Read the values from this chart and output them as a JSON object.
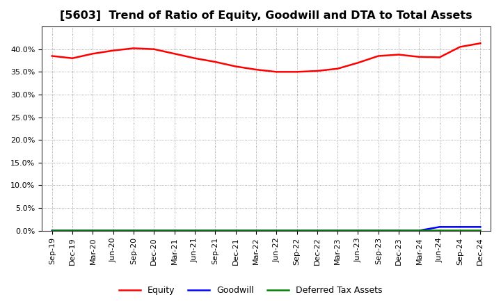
{
  "title": "[5603]  Trend of Ratio of Equity, Goodwill and DTA to Total Assets",
  "x_labels": [
    "Sep-19",
    "Dec-19",
    "Mar-20",
    "Jun-20",
    "Sep-20",
    "Dec-20",
    "Mar-21",
    "Jun-21",
    "Sep-21",
    "Dec-21",
    "Mar-22",
    "Jun-22",
    "Sep-22",
    "Dec-22",
    "Mar-23",
    "Jun-23",
    "Sep-23",
    "Dec-23",
    "Mar-24",
    "Jun-24",
    "Sep-24",
    "Dec-24"
  ],
  "equity": [
    0.385,
    0.38,
    0.39,
    0.397,
    0.402,
    0.4,
    0.39,
    0.38,
    0.372,
    0.362,
    0.355,
    0.35,
    0.35,
    0.352,
    0.357,
    0.37,
    0.385,
    0.388,
    0.383,
    0.382,
    0.405,
    0.413
  ],
  "goodwill": [
    0.0,
    0.0,
    0.0,
    0.0,
    0.0,
    0.0,
    0.0,
    0.0,
    0.0,
    0.0,
    0.0,
    0.0,
    0.0,
    0.0,
    0.0,
    0.0,
    0.0,
    0.0,
    0.0,
    0.008,
    0.008,
    0.008
  ],
  "dta": [
    0.001,
    0.001,
    0.001,
    0.001,
    0.001,
    0.001,
    0.001,
    0.001,
    0.001,
    0.001,
    0.001,
    0.001,
    0.001,
    0.001,
    0.001,
    0.001,
    0.001,
    0.001,
    0.001,
    0.001,
    0.001,
    0.001
  ],
  "equity_color": "#ff0000",
  "goodwill_color": "#0000ff",
  "dta_color": "#008000",
  "ylim": [
    0.0,
    0.45
  ],
  "yticks": [
    0.0,
    0.05,
    0.1,
    0.15,
    0.2,
    0.25,
    0.3,
    0.35,
    0.4
  ],
  "grid_color": "#888888",
  "background_color": "#ffffff",
  "legend_labels": [
    "Equity",
    "Goodwill",
    "Deferred Tax Assets"
  ],
  "title_fontsize": 11.5,
  "tick_fontsize": 8
}
